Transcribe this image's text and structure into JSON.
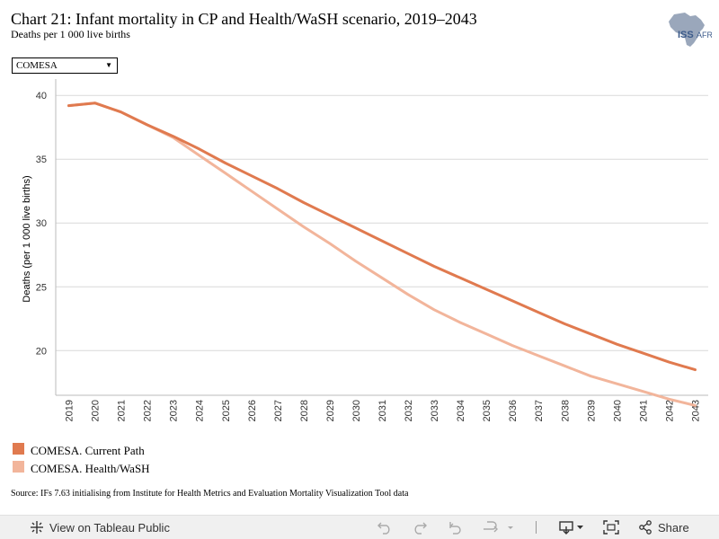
{
  "header": {
    "title": "Chart 21: Infant mortality in CP and Health/WaSH scenario, 2019–2043",
    "subtitle": "Deaths per 1 000 live births",
    "logo_text": "ISS",
    "logo_text_suffix": "AFRICA"
  },
  "filter": {
    "selected": "COMESA",
    "arrow": "▼"
  },
  "chart_data": {
    "type": "line",
    "x": [
      2019,
      2020,
      2021,
      2022,
      2023,
      2024,
      2025,
      2026,
      2027,
      2028,
      2029,
      2030,
      2031,
      2032,
      2033,
      2034,
      2035,
      2036,
      2037,
      2038,
      2039,
      2040,
      2041,
      2042,
      2043
    ],
    "series": [
      {
        "name": "COMESA. Current Path",
        "color": "#e07a4f",
        "values": [
          39.2,
          39.4,
          38.7,
          37.7,
          36.8,
          35.8,
          34.7,
          33.7,
          32.7,
          31.6,
          30.6,
          29.6,
          28.6,
          27.6,
          26.6,
          25.7,
          24.8,
          23.9,
          23.0,
          22.1,
          21.3,
          20.5,
          19.8,
          19.1,
          18.5
        ]
      },
      {
        "name": "COMESA. Health/WaSH",
        "color": "#f2b59b",
        "values": [
          39.2,
          39.4,
          38.7,
          37.7,
          36.7,
          35.3,
          33.9,
          32.5,
          31.1,
          29.7,
          28.4,
          27.0,
          25.7,
          24.4,
          23.2,
          22.2,
          21.3,
          20.4,
          19.6,
          18.8,
          18.0,
          17.4,
          16.8,
          16.2,
          15.7
        ]
      }
    ],
    "ylabel": "Deaths (per 1 000 live births)",
    "xlabel": "",
    "ylim": [
      16.5,
      41
    ],
    "yticks": [
      20,
      25,
      30,
      35,
      40
    ],
    "grid": true,
    "legend_position": "bottom-left"
  },
  "legend": {
    "items": [
      {
        "label": "COMESA. Current Path",
        "color": "#e07a4f"
      },
      {
        "label": "COMESA. Health/WaSH",
        "color": "#f2b59b"
      }
    ]
  },
  "source": "Source: IFs 7.63 initialising from Institute for Health Metrics and Evaluation Mortality Visualization Tool data",
  "toolbar": {
    "view_label": "View on Tableau Public",
    "share_label": "Share",
    "icons": [
      "tableau-logo-icon",
      "undo-icon",
      "redo-icon",
      "revert-icon",
      "refresh-icon",
      "download-icon",
      "fullscreen-icon",
      "share-icon"
    ]
  }
}
